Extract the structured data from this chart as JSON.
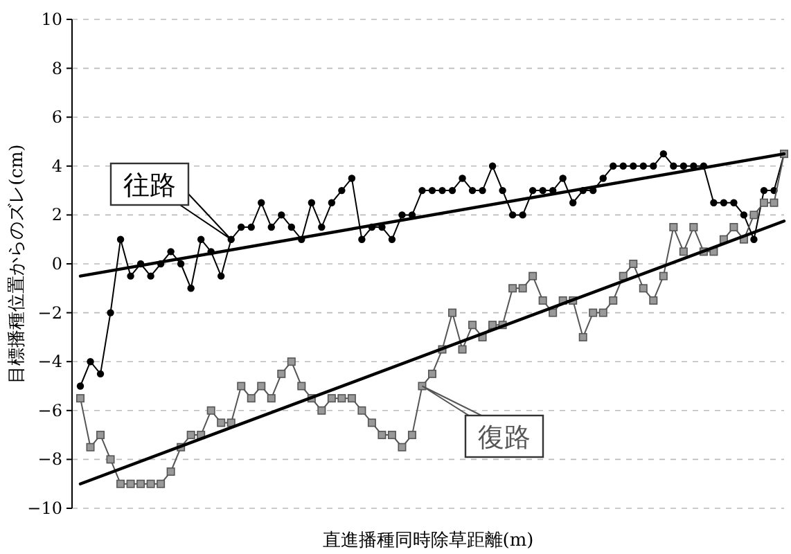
{
  "chart_data": {
    "type": "line",
    "xlabel": "直進播種同時除草距離(m)",
    "ylabel": "目標播種位置からのズレ(cm)",
    "categories": [
      null,
      null,
      null,
      null,
      null,
      null,
      null,
      null,
      null,
      null,
      null,
      null,
      null,
      null,
      null,
      null,
      null,
      null,
      null,
      null,
      null,
      null,
      null,
      null,
      null,
      null,
      null,
      null,
      null,
      null,
      null,
      null,
      null,
      null,
      null,
      null,
      null,
      null,
      null,
      null,
      null,
      null,
      null,
      null,
      null,
      null,
      null,
      null,
      null,
      null,
      null,
      null,
      null,
      null,
      null,
      null,
      null,
      null,
      null,
      null,
      null,
      null,
      null,
      null,
      null,
      null,
      null,
      null,
      null,
      null,
      null
    ],
    "ylim": [
      -10,
      10
    ],
    "yticks": [
      -10,
      -8,
      -6,
      -4,
      -2,
      0,
      2,
      4,
      6,
      8,
      10
    ],
    "grid": "y",
    "line_style": "solid",
    "series": [
      {
        "name": "往路",
        "color": "#000000",
        "marker": "circle",
        "values": [
          -5,
          -4,
          -4.5,
          -2,
          1,
          -0.5,
          0,
          -0.5,
          0,
          0.5,
          0,
          -1,
          1,
          0.5,
          -0.5,
          1,
          1.5,
          1.5,
          2.5,
          1.5,
          2,
          1.5,
          1,
          2.5,
          1.5,
          2.5,
          3,
          3.5,
          1,
          1.5,
          1.5,
          1,
          2,
          2,
          3,
          3,
          3,
          3,
          3.5,
          3,
          3,
          4,
          3,
          2,
          2,
          3,
          3,
          3,
          3.5,
          2.5,
          3,
          3,
          3.5,
          4,
          4,
          4,
          4,
          4,
          4.5,
          4,
          4,
          4,
          4,
          2.5,
          2.5,
          2.5,
          2,
          1,
          3,
          3,
          4.5
        ]
      },
      {
        "name": "復路",
        "color": "#555555",
        "marker": "square",
        "values": [
          -5.5,
          -7.5,
          -7,
          -8,
          -9,
          -9,
          -9,
          -9,
          -9,
          -8.5,
          -7.5,
          -7,
          -7,
          -6,
          -6.5,
          -6.5,
          -5,
          -5.5,
          -5,
          -5.5,
          -4.5,
          -4,
          -5,
          -5.5,
          -6,
          -5.5,
          -5.5,
          -5.5,
          -6,
          -6.5,
          -7,
          -7,
          -7.5,
          -7,
          -5,
          -4.5,
          -3.5,
          -2,
          -3.5,
          -2.5,
          -3,
          -2.5,
          -2.5,
          -1,
          -1,
          -0.5,
          -1.5,
          -2,
          -1.5,
          -1.5,
          -3,
          -2,
          -2,
          -1.5,
          -0.5,
          0,
          -1,
          -1.5,
          -0.5,
          1.5,
          0.5,
          1.5,
          0.5,
          0.5,
          1,
          1.5,
          1,
          2,
          2.5,
          2.5,
          4.5
        ]
      },
      {
        "type": "line",
        "color": "#000000",
        "marker": "none",
        "values": [
          -0.5,
          null,
          null,
          null,
          null,
          null,
          null,
          null,
          null,
          null,
          null,
          null,
          null,
          null,
          null,
          null,
          null,
          null,
          null,
          null,
          null,
          null,
          null,
          null,
          null,
          null,
          null,
          null,
          null,
          null,
          null,
          null,
          null,
          null,
          null,
          null,
          null,
          null,
          null,
          null,
          null,
          null,
          null,
          null,
          null,
          null,
          null,
          null,
          null,
          null,
          null,
          null,
          null,
          null,
          null,
          null,
          null,
          null,
          null,
          null,
          null,
          null,
          null,
          null,
          null,
          null,
          null,
          null,
          null,
          null,
          4.5
        ]
      },
      {
        "type": "line",
        "color": "#000000",
        "marker": "none",
        "values": [
          -9,
          null,
          null,
          null,
          null,
          null,
          null,
          null,
          null,
          null,
          null,
          null,
          null,
          null,
          null,
          null,
          null,
          null,
          null,
          null,
          null,
          null,
          null,
          null,
          null,
          null,
          null,
          null,
          null,
          null,
          null,
          null,
          null,
          null,
          null,
          null,
          null,
          null,
          null,
          null,
          null,
          null,
          null,
          null,
          null,
          null,
          null,
          null,
          null,
          null,
          null,
          null,
          null,
          null,
          null,
          null,
          null,
          null,
          null,
          null,
          null,
          null,
          null,
          null,
          null,
          null,
          null,
          null,
          null,
          null,
          1.75
        ]
      }
    ]
  }
}
